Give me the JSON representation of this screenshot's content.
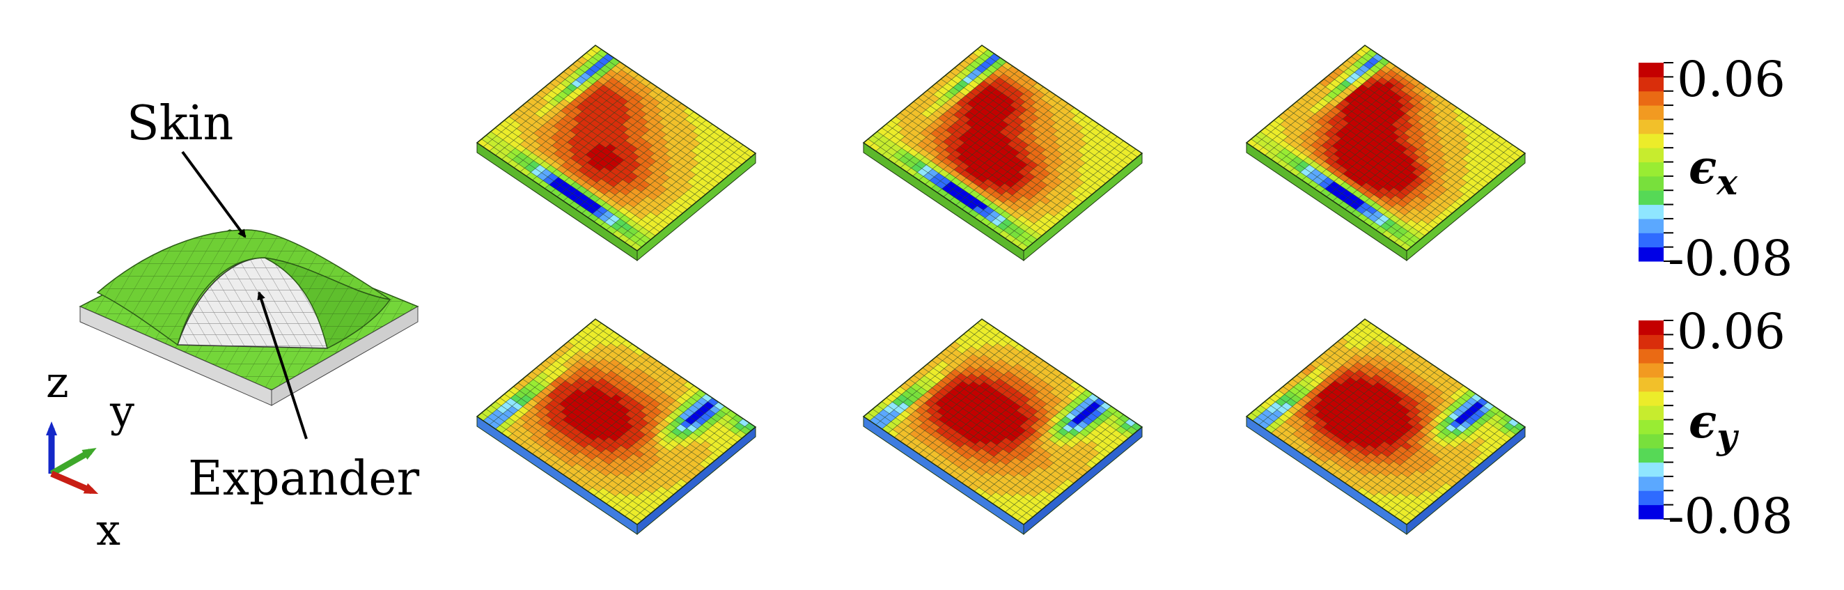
{
  "schematic": {
    "skin_label": "Skin",
    "expander_label": "Expander",
    "axes": {
      "z": "z",
      "y": "y",
      "x": "x"
    }
  },
  "colors": {
    "scale": [
      "#0000e6",
      "#2f6bff",
      "#5ba8ff",
      "#8fe6ff",
      "#56d956",
      "#78e03c",
      "#99ec33",
      "#c7ec2e",
      "#ecec2a",
      "#f2c02a",
      "#f29a21",
      "#ea6a14",
      "#d92e0b",
      "#c40000"
    ],
    "skin_green": "#74d63a",
    "expander_gray": "#e6e6e6",
    "axis_z": "#1428c8",
    "axis_y": "#3ea82a",
    "axis_x": "#c81e14"
  },
  "colorbars": [
    {
      "max_label": "0.06",
      "min_label": "-0.08",
      "symbol": "ϵ",
      "subscript": "x"
    },
    {
      "max_label": "0.06",
      "min_label": "-0.08",
      "symbol": "ϵ",
      "subscript": "y"
    }
  ],
  "panels": [
    {
      "component": "x",
      "stage": 1,
      "hot": 0.55,
      "cold": 1.0
    },
    {
      "component": "x",
      "stage": 2,
      "hot": 0.8,
      "cold": 1.0
    },
    {
      "component": "x",
      "stage": 3,
      "hot": 1.0,
      "cold": 1.0
    },
    {
      "component": "y",
      "stage": 1,
      "hot": 0.7,
      "cold": 1.0
    },
    {
      "component": "y",
      "stage": 2,
      "hot": 0.85,
      "cold": 1.0
    },
    {
      "component": "y",
      "stage": 3,
      "hot": 0.95,
      "cold": 1.0
    }
  ]
}
